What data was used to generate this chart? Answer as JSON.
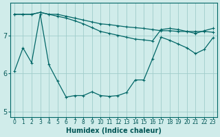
{
  "xlabel": "Humidex (Indice chaleur)",
  "ylabel": "",
  "bg_color": "#d0ecea",
  "grid_color": "#a0ccca",
  "line_color": "#006666",
  "x": [
    0,
    1,
    2,
    3,
    4,
    5,
    6,
    7,
    8,
    9,
    10,
    11,
    12,
    13,
    14,
    15,
    16,
    17,
    18,
    19,
    20,
    21,
    22,
    23
  ],
  "line1": [
    7.55,
    7.55,
    7.55,
    7.6,
    7.55,
    7.55,
    7.5,
    7.45,
    7.4,
    7.35,
    7.3,
    7.28,
    7.25,
    7.22,
    7.2,
    7.18,
    7.15,
    7.12,
    7.12,
    7.1,
    7.1,
    7.1,
    7.1,
    7.08
  ],
  "line2": [
    7.55,
    7.55,
    7.55,
    7.6,
    7.55,
    7.5,
    7.45,
    7.38,
    7.3,
    7.2,
    7.1,
    7.05,
    7.0,
    6.95,
    6.9,
    6.88,
    6.85,
    7.15,
    7.18,
    7.15,
    7.1,
    7.05,
    7.12,
    7.18
  ],
  "line3": [
    6.05,
    6.67,
    6.28,
    7.55,
    6.23,
    5.8,
    5.38,
    5.42,
    5.42,
    5.52,
    5.42,
    5.4,
    5.42,
    5.5,
    5.83,
    5.83,
    6.38,
    6.95,
    6.87,
    6.77,
    6.67,
    6.52,
    6.63,
    6.93
  ],
  "xlim": [
    -0.5,
    23.5
  ],
  "ylim": [
    4.85,
    7.85
  ],
  "yticks": [
    5,
    6,
    7
  ],
  "xtick_labels": [
    "0",
    "1",
    "2",
    "3",
    "4",
    "5",
    "6",
    "7",
    "8",
    "9",
    "10",
    "11",
    "12",
    "13",
    "14",
    "15",
    "16",
    "17",
    "18",
    "19",
    "20",
    "21",
    "22",
    "23"
  ],
  "figsize": [
    3.2,
    2.0
  ],
  "dpi": 100
}
